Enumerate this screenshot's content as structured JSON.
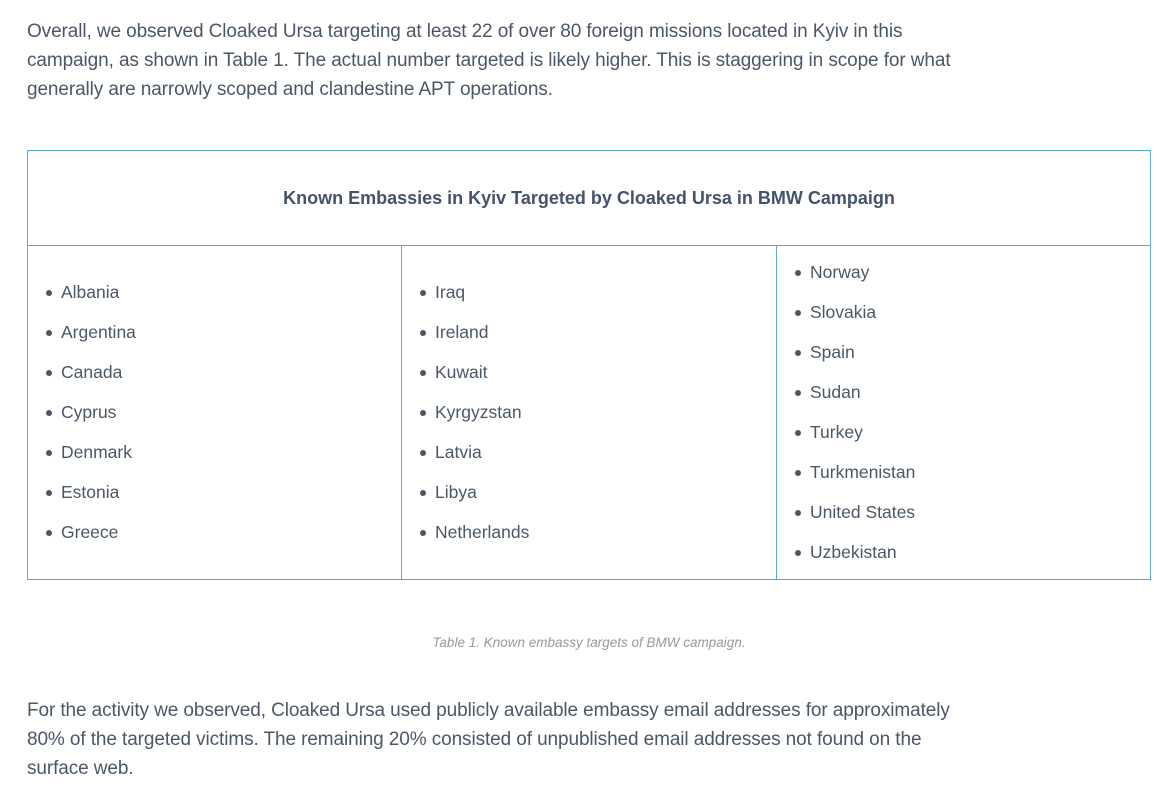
{
  "page": {
    "background": "#ffffff",
    "text_color": "#4a5767",
    "accent_border_color": "#5ca7d9",
    "caption_color": "#999999"
  },
  "paragraph_top": {
    "lines": [
      "Overall, we observed Cloaked Ursa targeting at least 22 of over 80 foreign missions located in Kyiv in this",
      "campaign, as shown in Table 1. The actual number targeted is likely higher. This is staggering in scope for what",
      "generally are narrowly scoped and clandestine APT operations."
    ]
  },
  "table": {
    "title": "Known Embassies in Kyiv Targeted by Cloaked Ursa in BMW Campaign",
    "columns": [
      {
        "items": [
          "Albania",
          "Argentina",
          "Canada",
          "Cyprus",
          "Denmark",
          "Estonia",
          "Greece"
        ]
      },
      {
        "items": [
          "Iraq",
          "Ireland",
          "Kuwait",
          "Kyrgyzstan",
          "Latvia",
          "Libya",
          "Netherlands"
        ]
      },
      {
        "items": [
          "Norway",
          "Slovakia",
          "Spain",
          "Sudan",
          "Turkey",
          "Turkmenistan",
          "United States",
          "Uzbekistan"
        ]
      }
    ],
    "caption": "Table 1. Known embassy targets of BMW campaign."
  },
  "paragraph_bottom": {
    "lines": [
      "For the activity we observed, Cloaked Ursa used publicly available embassy email addresses for approximately",
      "80% of the targeted victims. The remaining 20% consisted of unpublished email addresses not found on the",
      "surface web."
    ]
  }
}
